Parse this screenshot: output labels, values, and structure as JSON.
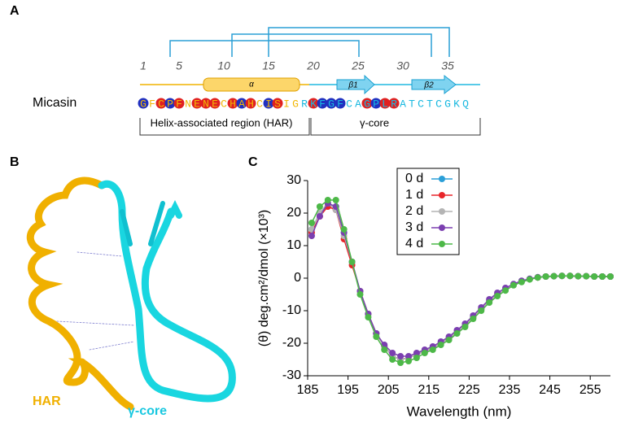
{
  "panel_a": {
    "label": "A",
    "protein": "Micasin",
    "ruler": [
      1,
      5,
      10,
      15,
      20,
      25,
      30,
      35
    ],
    "sequence": [
      "G",
      "F",
      "C",
      "P",
      "F",
      "N",
      "E",
      "N",
      "E",
      "C",
      "H",
      "A",
      "H",
      "C",
      "I",
      "S",
      "I",
      "G",
      "R",
      "K",
      "F",
      "G",
      "F",
      "C",
      "A",
      "G",
      "P",
      "L",
      "R",
      "A",
      "T",
      "C",
      "T",
      "C",
      "G",
      "K",
      "Q"
    ],
    "circle_colors": [
      "#2030c0",
      null,
      "#e02020",
      "#2030c0",
      "#e02020",
      null,
      "#e02020",
      "#e02020",
      "#e02020",
      null,
      "#e02020",
      "#2030c0",
      "#e02020",
      null,
      "#2030c0",
      "#e02020",
      null,
      null,
      null,
      "#e02020",
      "#2030c0",
      "#2030c0",
      "#2030c0",
      null,
      null,
      "#e02020",
      "#2030c0",
      "#e02020",
      "#e02020",
      null,
      null,
      null,
      null,
      null,
      null,
      null,
      null
    ],
    "helix_label": "α",
    "strand1_label": "β1",
    "strand2_label": "β2",
    "region1": "Helix-associated region (HAR)",
    "region2": "γ-core"
  },
  "panel_b": {
    "label": "B",
    "har_label": "HAR",
    "core_label": "γ-core"
  },
  "chart_data": {
    "type": "line",
    "panel_label": "C",
    "x_label": "Wavelength (nm)",
    "y_label": "(θ) deg.cm²/dmol (×10³)",
    "xlim": [
      185,
      260
    ],
    "xticks": [
      185,
      195,
      205,
      215,
      225,
      235,
      245,
      255
    ],
    "ylim": [
      -30,
      30
    ],
    "yticks": [
      -30,
      -20,
      -10,
      0,
      10,
      20,
      30
    ],
    "legend": "upper center",
    "x": [
      186,
      188,
      190,
      192,
      194,
      196,
      198,
      200,
      202,
      204,
      206,
      208,
      210,
      212,
      214,
      216,
      218,
      220,
      222,
      224,
      226,
      228,
      230,
      232,
      234,
      236,
      238,
      240,
      242,
      244,
      246,
      248,
      250,
      252,
      254,
      256,
      258,
      260
    ],
    "series": [
      {
        "name": "0 d",
        "color": "#2b9fd8",
        "values": [
          15,
          20,
          23,
          22,
          14,
          5,
          -4,
          -11,
          -17,
          -21,
          -24,
          -25,
          -24.5,
          -23.5,
          -22.5,
          -21.5,
          -20,
          -18.5,
          -16.5,
          -14.5,
          -12,
          -9.5,
          -7,
          -5,
          -3.5,
          -2,
          -1,
          -0.3,
          0.2,
          0.5,
          0.6,
          0.7,
          0.7,
          0.6,
          0.6,
          0.5,
          0.5,
          0.5
        ]
      },
      {
        "name": "1 d",
        "color": "#e8252a",
        "values": [
          14,
          19,
          22,
          21,
          12,
          4,
          -4,
          -11,
          -17,
          -21,
          -24,
          -25,
          -24.5,
          -23.5,
          -22.5,
          -21.5,
          -20,
          -18.5,
          -16.5,
          -14.5,
          -12,
          -9.5,
          -7,
          -5,
          -3.5,
          -2,
          -1,
          -0.3,
          0.2,
          0.5,
          0.6,
          0.7,
          0.7,
          0.6,
          0.6,
          0.5,
          0.5,
          0.5
        ]
      },
      {
        "name": "2 d",
        "color": "#b4b4b4",
        "values": [
          15,
          20,
          23,
          21,
          13,
          5,
          -4,
          -11,
          -17,
          -21,
          -24,
          -25,
          -24.5,
          -23.5,
          -22.5,
          -21.5,
          -20,
          -18.5,
          -16.5,
          -14.5,
          -12,
          -9.5,
          -7,
          -5,
          -3.5,
          -2,
          -1,
          -0.3,
          0.2,
          0.5,
          0.6,
          0.7,
          0.7,
          0.6,
          0.6,
          0.5,
          0.5,
          0.5
        ]
      },
      {
        "name": "3 d",
        "color": "#7b3fb0",
        "values": [
          13,
          19,
          23,
          22,
          14,
          5,
          -4,
          -11,
          -17,
          -20.5,
          -23,
          -24,
          -24,
          -23,
          -22,
          -21,
          -19.5,
          -18,
          -16,
          -14,
          -11.5,
          -9,
          -6.5,
          -4.5,
          -3,
          -1.8,
          -0.8,
          -0.2,
          0.3,
          0.5,
          0.6,
          0.7,
          0.7,
          0.6,
          0.6,
          0.5,
          0.5,
          0.5
        ]
      },
      {
        "name": "4 d",
        "color": "#4db848",
        "values": [
          17,
          22,
          24,
          24,
          15,
          5,
          -5,
          -12,
          -18,
          -22,
          -25,
          -26,
          -25.5,
          -24.5,
          -23,
          -22,
          -20.5,
          -19,
          -17,
          -15,
          -12.5,
          -10,
          -7.5,
          -5.5,
          -3.8,
          -2.2,
          -1.2,
          -0.4,
          0.2,
          0.5,
          0.6,
          0.7,
          0.7,
          0.6,
          0.6,
          0.5,
          0.5,
          0.5
        ]
      }
    ]
  }
}
